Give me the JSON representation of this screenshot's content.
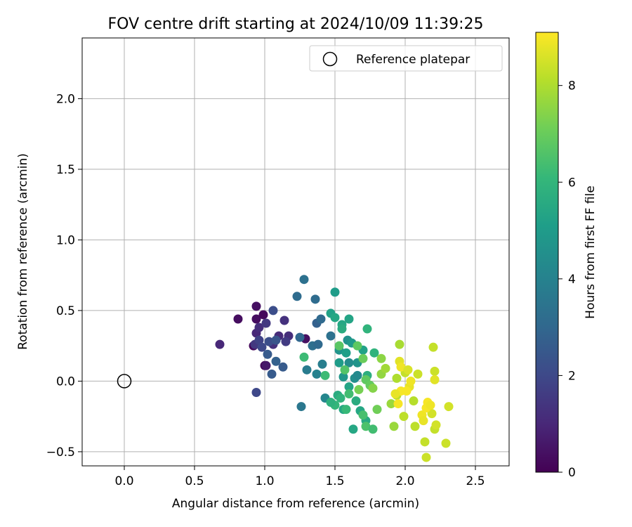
{
  "chart_data": {
    "type": "scatter",
    "title": "FOV centre drift starting at 2024/10/09 11:39:25",
    "xlabel": "Angular distance from reference (arcmin)",
    "ylabel": "Rotation from reference (arcmin)",
    "xlim": [
      -0.3,
      2.74
    ],
    "ylim": [
      -0.6,
      2.43
    ],
    "xticks": [
      0.0,
      0.5,
      1.0,
      1.5,
      2.0,
      2.5
    ],
    "xtick_labels": [
      "0.0",
      "0.5",
      "1.0",
      "1.5",
      "2.0",
      "2.5"
    ],
    "yticks": [
      -0.5,
      0.0,
      0.5,
      1.0,
      1.5,
      2.0
    ],
    "ytick_labels": [
      "−0.5",
      "0.0",
      "0.5",
      "1.0",
      "1.5",
      "2.0"
    ],
    "grid": true,
    "legend": {
      "position": "top-right",
      "entries": [
        {
          "label": "Reference platepar",
          "marker": "open-circle"
        }
      ]
    },
    "reference_point": {
      "x": 0.0,
      "y": 0.0
    },
    "colorbar": {
      "label": "Hours from first FF file",
      "range": [
        0,
        9.1
      ],
      "ticks": [
        0,
        2,
        4,
        6,
        8
      ],
      "tick_labels": [
        "0",
        "2",
        "4",
        "6",
        "8"
      ],
      "colormap": "viridis"
    },
    "colors": {
      "grid": "#b0b0b0",
      "reference_marker": "#000000",
      "viridis": [
        "#440154",
        "#482878",
        "#3e4989",
        "#31688e",
        "#26828e",
        "#1f9e89",
        "#35b779",
        "#6ece58",
        "#b5de2b",
        "#fde725"
      ]
    },
    "points": [
      {
        "x": 0.81,
        "y": 0.44,
        "c": 0.3
      },
      {
        "x": 0.94,
        "y": 0.53,
        "c": 0.4
      },
      {
        "x": 0.94,
        "y": 0.44,
        "c": 0.3
      },
      {
        "x": 0.99,
        "y": 0.47,
        "c": 0.2
      },
      {
        "x": 0.92,
        "y": 0.25,
        "c": 0.2
      },
      {
        "x": 1.0,
        "y": 0.11,
        "c": 0.2
      },
      {
        "x": 1.01,
        "y": 0.11,
        "c": 0.6
      },
      {
        "x": 1.29,
        "y": 0.3,
        "c": 0.4
      },
      {
        "x": 0.68,
        "y": 0.26,
        "c": 1.0
      },
      {
        "x": 0.94,
        "y": 0.34,
        "c": 1.0
      },
      {
        "x": 0.96,
        "y": 0.38,
        "c": 1.2
      },
      {
        "x": 1.01,
        "y": 0.41,
        "c": 1.5
      },
      {
        "x": 1.1,
        "y": 0.32,
        "c": 1.1
      },
      {
        "x": 1.06,
        "y": 0.26,
        "c": 1.3
      },
      {
        "x": 1.14,
        "y": 0.43,
        "c": 1.3
      },
      {
        "x": 1.17,
        "y": 0.32,
        "c": 1.2
      },
      {
        "x": 1.15,
        "y": 0.28,
        "c": 1.6
      },
      {
        "x": 0.93,
        "y": 0.26,
        "c": 1.5
      },
      {
        "x": 0.96,
        "y": 0.29,
        "c": 1.8
      },
      {
        "x": 0.98,
        "y": 0.24,
        "c": 2.0
      },
      {
        "x": 1.03,
        "y": 0.28,
        "c": 2.2
      },
      {
        "x": 1.08,
        "y": 0.29,
        "c": 2.4
      },
      {
        "x": 1.06,
        "y": 0.5,
        "c": 2.2
      },
      {
        "x": 0.94,
        "y": -0.08,
        "c": 2.0
      },
      {
        "x": 1.02,
        "y": 0.19,
        "c": 2.6
      },
      {
        "x": 1.05,
        "y": 0.05,
        "c": 2.6
      },
      {
        "x": 1.08,
        "y": 0.14,
        "c": 2.8
      },
      {
        "x": 1.13,
        "y": 0.1,
        "c": 2.6
      },
      {
        "x": 1.28,
        "y": 0.72,
        "c": 3.4
      },
      {
        "x": 1.23,
        "y": 0.6,
        "c": 3.2
      },
      {
        "x": 1.36,
        "y": 0.58,
        "c": 3.2
      },
      {
        "x": 1.37,
        "y": 0.41,
        "c": 2.8
      },
      {
        "x": 1.4,
        "y": 0.44,
        "c": 3.1
      },
      {
        "x": 1.25,
        "y": 0.31,
        "c": 3.0
      },
      {
        "x": 1.34,
        "y": 0.25,
        "c": 3.3
      },
      {
        "x": 1.38,
        "y": 0.26,
        "c": 3.1
      },
      {
        "x": 1.47,
        "y": 0.32,
        "c": 3.4
      },
      {
        "x": 1.26,
        "y": -0.18,
        "c": 3.6
      },
      {
        "x": 1.3,
        "y": 0.08,
        "c": 3.8
      },
      {
        "x": 1.37,
        "y": 0.05,
        "c": 4.0
      },
      {
        "x": 1.41,
        "y": 0.12,
        "c": 3.9
      },
      {
        "x": 1.43,
        "y": -0.12,
        "c": 4.2
      },
      {
        "x": 1.5,
        "y": 0.63,
        "c": 5.0
      },
      {
        "x": 1.47,
        "y": 0.48,
        "c": 5.2
      },
      {
        "x": 1.5,
        "y": 0.45,
        "c": 5.4
      },
      {
        "x": 1.55,
        "y": 0.4,
        "c": 5.4
      },
      {
        "x": 1.55,
        "y": 0.37,
        "c": 5.6
      },
      {
        "x": 1.6,
        "y": 0.44,
        "c": 5.3
      },
      {
        "x": 1.59,
        "y": 0.29,
        "c": 4.6
      },
      {
        "x": 1.62,
        "y": 0.27,
        "c": 4.9
      },
      {
        "x": 1.53,
        "y": 0.22,
        "c": 4.7
      },
      {
        "x": 1.58,
        "y": 0.2,
        "c": 5.1
      },
      {
        "x": 1.6,
        "y": 0.13,
        "c": 4.4
      },
      {
        "x": 1.53,
        "y": 0.13,
        "c": 5.0
      },
      {
        "x": 1.56,
        "y": 0.03,
        "c": 4.8
      },
      {
        "x": 1.64,
        "y": 0.02,
        "c": 4.5
      },
      {
        "x": 1.66,
        "y": 0.04,
        "c": 4.3
      },
      {
        "x": 1.66,
        "y": 0.13,
        "c": 4.7
      },
      {
        "x": 1.7,
        "y": 0.22,
        "c": 5.2
      },
      {
        "x": 1.73,
        "y": 0.37,
        "c": 5.9
      },
      {
        "x": 1.78,
        "y": 0.2,
        "c": 5.9
      },
      {
        "x": 1.73,
        "y": 0.04,
        "c": 5.7
      },
      {
        "x": 1.6,
        "y": -0.04,
        "c": 5.3
      },
      {
        "x": 1.52,
        "y": -0.1,
        "c": 5.6
      },
      {
        "x": 1.54,
        "y": -0.12,
        "c": 5.9
      },
      {
        "x": 1.5,
        "y": -0.17,
        "c": 6.0
      },
      {
        "x": 1.47,
        "y": -0.15,
        "c": 5.8
      },
      {
        "x": 1.56,
        "y": -0.2,
        "c": 5.4
      },
      {
        "x": 1.63,
        "y": -0.34,
        "c": 5.4
      },
      {
        "x": 1.58,
        "y": -0.2,
        "c": 6.1
      },
      {
        "x": 1.65,
        "y": -0.14,
        "c": 5.6
      },
      {
        "x": 1.68,
        "y": -0.21,
        "c": 5.4
      },
      {
        "x": 1.72,
        "y": -0.28,
        "c": 5.5
      },
      {
        "x": 1.6,
        "y": -0.09,
        "c": 6.3
      },
      {
        "x": 1.7,
        "y": -0.24,
        "c": 6.4
      },
      {
        "x": 1.72,
        "y": -0.32,
        "c": 6.5
      },
      {
        "x": 1.77,
        "y": -0.34,
        "c": 6.3
      },
      {
        "x": 1.28,
        "y": 0.17,
        "c": 6.2
      },
      {
        "x": 1.43,
        "y": 0.04,
        "c": 6.2
      },
      {
        "x": 1.53,
        "y": 0.25,
        "c": 6.7
      },
      {
        "x": 1.57,
        "y": 0.08,
        "c": 6.6
      },
      {
        "x": 1.66,
        "y": 0.25,
        "c": 6.8
      },
      {
        "x": 1.7,
        "y": 0.16,
        "c": 7.0
      },
      {
        "x": 1.72,
        "y": 0.01,
        "c": 6.8
      },
      {
        "x": 1.75,
        "y": -0.03,
        "c": 6.9
      },
      {
        "x": 1.67,
        "y": -0.06,
        "c": 7.2
      },
      {
        "x": 1.8,
        "y": -0.2,
        "c": 7.1
      },
      {
        "x": 1.77,
        "y": -0.05,
        "c": 7.4
      },
      {
        "x": 1.83,
        "y": 0.05,
        "c": 7.6
      },
      {
        "x": 1.83,
        "y": 0.16,
        "c": 7.5
      },
      {
        "x": 1.86,
        "y": 0.09,
        "c": 7.8
      },
      {
        "x": 1.9,
        "y": -0.16,
        "c": 7.7
      },
      {
        "x": 1.92,
        "y": -0.32,
        "c": 7.7
      },
      {
        "x": 1.96,
        "y": 0.26,
        "c": 7.9
      },
      {
        "x": 1.94,
        "y": 0.02,
        "c": 8.0
      },
      {
        "x": 1.94,
        "y": -0.1,
        "c": 8.2
      },
      {
        "x": 1.99,
        "y": -0.25,
        "c": 8.2
      },
      {
        "x": 2.0,
        "y": 0.06,
        "c": 8.3
      },
      {
        "x": 2.06,
        "y": -0.14,
        "c": 8.1
      },
      {
        "x": 2.07,
        "y": -0.32,
        "c": 8.2
      },
      {
        "x": 2.09,
        "y": 0.05,
        "c": 8.4
      },
      {
        "x": 2.14,
        "y": -0.43,
        "c": 8.3
      },
      {
        "x": 2.15,
        "y": -0.54,
        "c": 8.4
      },
      {
        "x": 2.2,
        "y": 0.24,
        "c": 8.3
      },
      {
        "x": 2.21,
        "y": 0.07,
        "c": 8.4
      },
      {
        "x": 2.19,
        "y": -0.23,
        "c": 8.5
      },
      {
        "x": 2.21,
        "y": -0.34,
        "c": 8.3
      },
      {
        "x": 2.22,
        "y": -0.31,
        "c": 8.5
      },
      {
        "x": 2.29,
        "y": -0.44,
        "c": 8.4
      },
      {
        "x": 2.31,
        "y": -0.18,
        "c": 8.5
      },
      {
        "x": 1.96,
        "y": 0.14,
        "c": 8.7
      },
      {
        "x": 1.97,
        "y": 0.1,
        "c": 8.9
      },
      {
        "x": 2.02,
        "y": 0.08,
        "c": 8.6
      },
      {
        "x": 2.03,
        "y": -0.04,
        "c": 8.8
      },
      {
        "x": 2.04,
        "y": 0.0,
        "c": 8.9
      },
      {
        "x": 2.01,
        "y": -0.07,
        "c": 9.0
      },
      {
        "x": 1.97,
        "y": -0.07,
        "c": 9.0
      },
      {
        "x": 1.93,
        "y": -0.09,
        "c": 8.8
      },
      {
        "x": 1.95,
        "y": -0.16,
        "c": 9.0
      },
      {
        "x": 2.12,
        "y": -0.24,
        "c": 8.9
      },
      {
        "x": 2.15,
        "y": -0.19,
        "c": 9.0
      },
      {
        "x": 2.16,
        "y": -0.15,
        "c": 9.0
      },
      {
        "x": 2.18,
        "y": -0.17,
        "c": 8.9
      },
      {
        "x": 2.21,
        "y": 0.01,
        "c": 8.7
      },
      {
        "x": 2.13,
        "y": -0.28,
        "c": 8.8
      }
    ]
  }
}
